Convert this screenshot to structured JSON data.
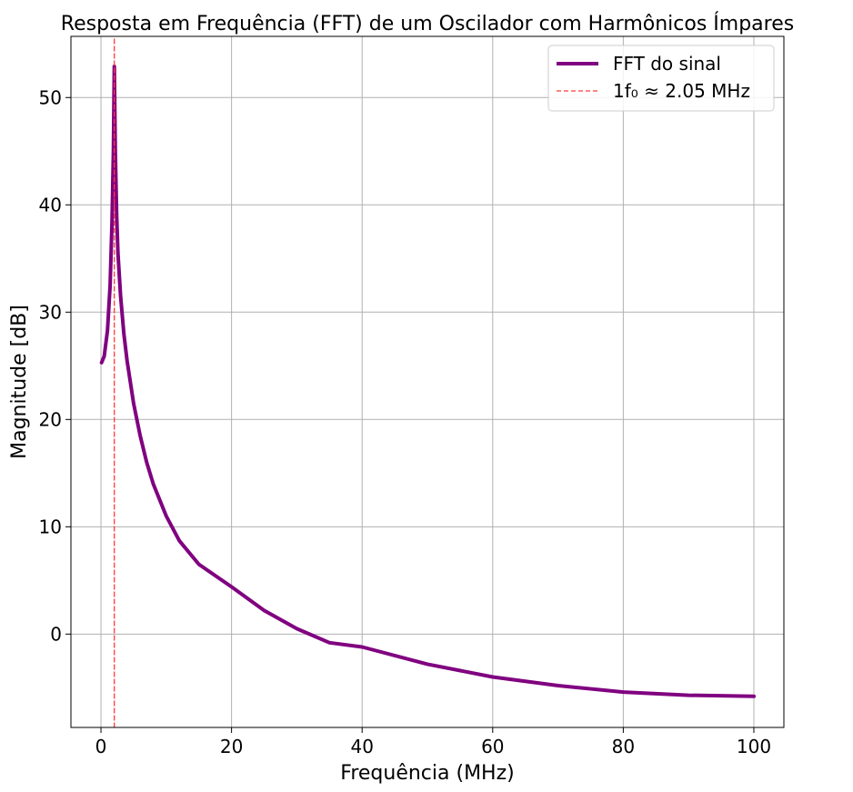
{
  "chart_data": {
    "type": "line",
    "title": "Resposta em Frequência (FFT) de um Oscilador com Harmônicos Ímpares",
    "xlabel": "Frequência (MHz)",
    "ylabel": "Magnitude [dB]",
    "xlim": [
      -4.6,
      104.6
    ],
    "ylim": [
      -8.7,
      55.7
    ],
    "xticks": [
      0,
      20,
      40,
      60,
      80,
      100
    ],
    "yticks": [
      0,
      10,
      20,
      30,
      40,
      50
    ],
    "grid": true,
    "legend_position": "upper right",
    "series": [
      {
        "name": "FFT do sinal",
        "color": "#800080",
        "style": "solid",
        "x": [
          0.1,
          0.5,
          1.0,
          1.4,
          1.7,
          1.9,
          2.05,
          2.2,
          2.4,
          2.6,
          3,
          3.5,
          4,
          5,
          6,
          7,
          8,
          10,
          12,
          15,
          20,
          25,
          30,
          35,
          40,
          50,
          60,
          70,
          80,
          90,
          100
        ],
        "y": [
          25.3,
          25.9,
          28.3,
          32.5,
          38.5,
          45.0,
          52.9,
          45.0,
          39.0,
          35.5,
          31.5,
          28.0,
          25.5,
          21.5,
          18.5,
          16.0,
          14.0,
          11.0,
          8.7,
          6.5,
          4.4,
          2.2,
          0.5,
          -0.8,
          -1.2,
          -2.8,
          -4.0,
          -4.8,
          -5.4,
          -5.7,
          -5.8
        ]
      },
      {
        "name": "1f₀ ≈ 2.05 MHz",
        "color": "#ff3b3b",
        "style": "dashed",
        "x": [
          2.05,
          2.05
        ],
        "y": [
          -8.7,
          55.7
        ]
      }
    ]
  }
}
